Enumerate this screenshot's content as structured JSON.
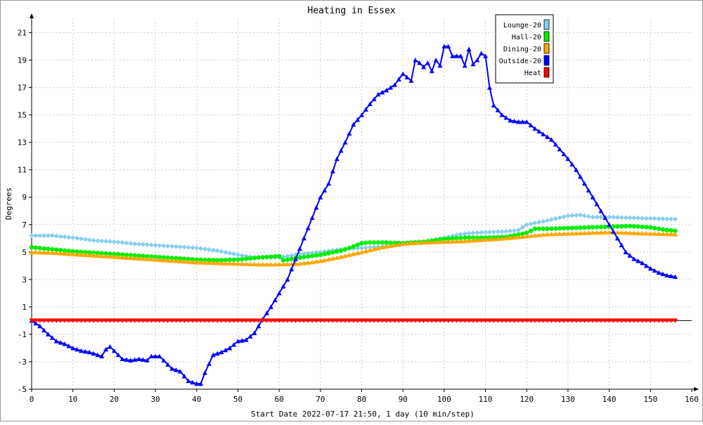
{
  "chart_data": {
    "type": "line",
    "title": "Heating in Essex",
    "xlabel": "Start Date 2022-07-17 21:50, 1 day (10 min/step)",
    "ylabel": "Degrees",
    "xlim": [
      0,
      160
    ],
    "ylim": [
      -5,
      22
    ],
    "x_ticks": [
      0,
      10,
      20,
      30,
      40,
      50,
      60,
      70,
      80,
      90,
      100,
      110,
      120,
      130,
      140,
      150,
      160
    ],
    "y_ticks": [
      -5,
      -3,
      -1,
      1,
      3,
      5,
      7,
      9,
      11,
      13,
      15,
      17,
      19,
      21
    ],
    "grid": true,
    "legend_position": "top-right",
    "series": [
      {
        "name": "Lounge-20",
        "color": "#87ceeb",
        "marker": "diamond",
        "points": [
          [
            0,
            6.2
          ],
          [
            5,
            6.2
          ],
          [
            10,
            6.05
          ],
          [
            15,
            5.85
          ],
          [
            20,
            5.75
          ],
          [
            25,
            5.6
          ],
          [
            30,
            5.5
          ],
          [
            35,
            5.4
          ],
          [
            40,
            5.3
          ],
          [
            45,
            5.1
          ],
          [
            50,
            4.8
          ],
          [
            53,
            4.65
          ],
          [
            56,
            4.6
          ],
          [
            60,
            4.6
          ],
          [
            65,
            4.85
          ],
          [
            70,
            5.0
          ],
          [
            75,
            5.2
          ],
          [
            80,
            5.3
          ],
          [
            85,
            5.4
          ],
          [
            90,
            5.6
          ],
          [
            95,
            5.75
          ],
          [
            100,
            6.05
          ],
          [
            105,
            6.35
          ],
          [
            110,
            6.45
          ],
          [
            115,
            6.5
          ],
          [
            118,
            6.6
          ],
          [
            120,
            7.0
          ],
          [
            125,
            7.3
          ],
          [
            130,
            7.65
          ],
          [
            133,
            7.7
          ],
          [
            136,
            7.55
          ],
          [
            140,
            7.55
          ],
          [
            145,
            7.5
          ],
          [
            150,
            7.45
          ],
          [
            156,
            7.4
          ]
        ]
      },
      {
        "name": "Hall-20",
        "color": "#00ee00",
        "marker": "circle",
        "points": [
          [
            0,
            5.35
          ],
          [
            5,
            5.2
          ],
          [
            10,
            5.05
          ],
          [
            15,
            4.95
          ],
          [
            20,
            4.85
          ],
          [
            25,
            4.75
          ],
          [
            30,
            4.65
          ],
          [
            35,
            4.55
          ],
          [
            40,
            4.45
          ],
          [
            45,
            4.4
          ],
          [
            50,
            4.45
          ],
          [
            55,
            4.6
          ],
          [
            60,
            4.7
          ],
          [
            61,
            4.4
          ],
          [
            65,
            4.6
          ],
          [
            70,
            4.8
          ],
          [
            75,
            5.1
          ],
          [
            78,
            5.4
          ],
          [
            80,
            5.65
          ],
          [
            82,
            5.7
          ],
          [
            85,
            5.7
          ],
          [
            90,
            5.65
          ],
          [
            95,
            5.75
          ],
          [
            100,
            5.95
          ],
          [
            105,
            6.05
          ],
          [
            110,
            6.05
          ],
          [
            115,
            6.1
          ],
          [
            120,
            6.4
          ],
          [
            122,
            6.7
          ],
          [
            125,
            6.7
          ],
          [
            130,
            6.75
          ],
          [
            135,
            6.8
          ],
          [
            140,
            6.85
          ],
          [
            145,
            6.9
          ],
          [
            150,
            6.8
          ],
          [
            154,
            6.6
          ],
          [
            156,
            6.55
          ]
        ]
      },
      {
        "name": "Dining-20",
        "color": "#ffa500",
        "marker": "triangle-up",
        "points": [
          [
            0,
            5.0
          ],
          [
            5,
            4.95
          ],
          [
            10,
            4.85
          ],
          [
            15,
            4.75
          ],
          [
            20,
            4.65
          ],
          [
            25,
            4.55
          ],
          [
            30,
            4.45
          ],
          [
            35,
            4.35
          ],
          [
            40,
            4.25
          ],
          [
            45,
            4.2
          ],
          [
            50,
            4.15
          ],
          [
            55,
            4.1
          ],
          [
            60,
            4.1
          ],
          [
            65,
            4.15
          ],
          [
            70,
            4.35
          ],
          [
            75,
            4.65
          ],
          [
            80,
            5.0
          ],
          [
            85,
            5.35
          ],
          [
            90,
            5.6
          ],
          [
            95,
            5.7
          ],
          [
            100,
            5.75
          ],
          [
            105,
            5.8
          ],
          [
            110,
            5.9
          ],
          [
            115,
            6.0
          ],
          [
            120,
            6.15
          ],
          [
            125,
            6.3
          ],
          [
            130,
            6.35
          ],
          [
            135,
            6.4
          ],
          [
            140,
            6.45
          ],
          [
            145,
            6.4
          ],
          [
            150,
            6.35
          ],
          [
            156,
            6.3
          ]
        ]
      },
      {
        "name": "Outside-20",
        "color": "#0000ff",
        "marker": "triangle-up",
        "points": [
          [
            0,
            0
          ],
          [
            2,
            -0.4
          ],
          [
            4,
            -1.0
          ],
          [
            6,
            -1.5
          ],
          [
            8,
            -1.7
          ],
          [
            10,
            -2.0
          ],
          [
            12,
            -2.2
          ],
          [
            14,
            -2.3
          ],
          [
            16,
            -2.5
          ],
          [
            17,
            -2.6
          ],
          [
            18,
            -2.1
          ],
          [
            19,
            -1.9
          ],
          [
            20,
            -2.2
          ],
          [
            22,
            -2.8
          ],
          [
            24,
            -2.9
          ],
          [
            26,
            -2.8
          ],
          [
            28,
            -2.9
          ],
          [
            29,
            -2.6
          ],
          [
            31,
            -2.6
          ],
          [
            32,
            -2.9
          ],
          [
            34,
            -3.5
          ],
          [
            36,
            -3.7
          ],
          [
            38,
            -4.4
          ],
          [
            40,
            -4.6
          ],
          [
            41,
            -4.6
          ],
          [
            42,
            -3.8
          ],
          [
            44,
            -2.5
          ],
          [
            46,
            -2.3
          ],
          [
            48,
            -2.0
          ],
          [
            50,
            -1.5
          ],
          [
            52,
            -1.4
          ],
          [
            54,
            -0.9
          ],
          [
            56,
            0.1
          ],
          [
            58,
            1.0
          ],
          [
            60,
            2.0
          ],
          [
            62,
            3.0
          ],
          [
            64,
            4.5
          ],
          [
            66,
            6.0
          ],
          [
            68,
            7.5
          ],
          [
            70,
            9.0
          ],
          [
            72,
            10.0
          ],
          [
            74,
            11.8
          ],
          [
            76,
            13.0
          ],
          [
            78,
            14.3
          ],
          [
            80,
            15.0
          ],
          [
            82,
            15.8
          ],
          [
            84,
            16.5
          ],
          [
            86,
            16.8
          ],
          [
            88,
            17.2
          ],
          [
            90,
            18.0
          ],
          [
            92,
            17.5
          ],
          [
            93,
            19.0
          ],
          [
            94,
            18.8
          ],
          [
            95,
            18.5
          ],
          [
            96,
            18.8
          ],
          [
            97,
            18.2
          ],
          [
            98,
            19.0
          ],
          [
            99,
            18.6
          ],
          [
            100,
            20.0
          ],
          [
            101,
            20.0
          ],
          [
            102,
            19.3
          ],
          [
            104,
            19.3
          ],
          [
            105,
            18.6
          ],
          [
            106,
            19.8
          ],
          [
            107,
            18.7
          ],
          [
            108,
            19.0
          ],
          [
            109,
            19.5
          ],
          [
            110,
            19.3
          ],
          [
            111,
            17.0
          ],
          [
            112,
            15.7
          ],
          [
            114,
            15.0
          ],
          [
            116,
            14.6
          ],
          [
            118,
            14.5
          ],
          [
            120,
            14.5
          ],
          [
            122,
            14.0
          ],
          [
            124,
            13.6
          ],
          [
            126,
            13.2
          ],
          [
            128,
            12.5
          ],
          [
            130,
            11.8
          ],
          [
            132,
            11.0
          ],
          [
            134,
            10.0
          ],
          [
            136,
            9.0
          ],
          [
            138,
            8.0
          ],
          [
            140,
            7.0
          ],
          [
            142,
            6.0
          ],
          [
            144,
            5.0
          ],
          [
            146,
            4.5
          ],
          [
            148,
            4.2
          ],
          [
            150,
            3.8
          ],
          [
            152,
            3.5
          ],
          [
            154,
            3.3
          ],
          [
            156,
            3.2
          ]
        ]
      },
      {
        "name": "Heat",
        "color": "#ff0000",
        "marker": "triangle-down",
        "points": [
          [
            0,
            0
          ],
          [
            156,
            0
          ]
        ]
      }
    ]
  }
}
